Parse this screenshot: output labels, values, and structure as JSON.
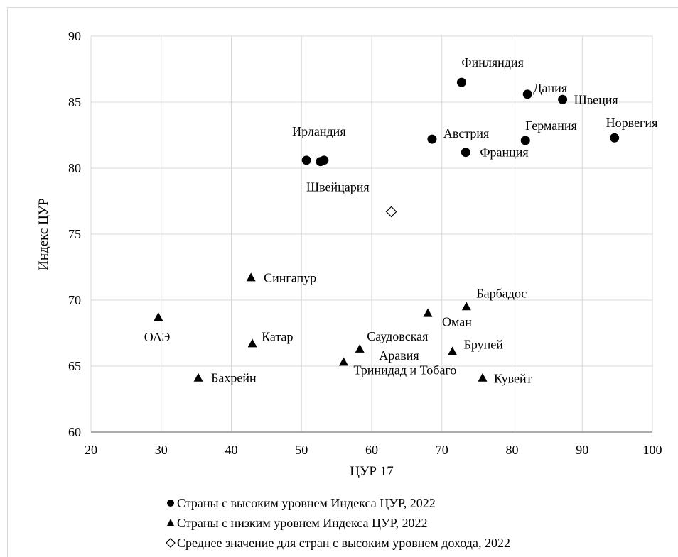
{
  "chart_data": {
    "type": "scatter",
    "xlabel": "ЦУР 17",
    "ylabel": "Индекс ЦУР",
    "xlim": [
      20,
      100
    ],
    "ylim": [
      60,
      90
    ],
    "xticks": [
      20,
      30,
      40,
      50,
      60,
      70,
      80,
      90,
      100
    ],
    "yticks": [
      60,
      65,
      70,
      75,
      80,
      85,
      90
    ],
    "grid": true,
    "legend_position": "bottom",
    "series": [
      {
        "name": "Страны с высоким уровнем Индекса ЦУР, 2022",
        "marker": "circle",
        "color": "#000000",
        "points": [
          {
            "label": "Финляндия",
            "x": 72.8,
            "y": 86.5
          },
          {
            "label": "Дания",
            "x": 82.2,
            "y": 85.6
          },
          {
            "label": "Швеция",
            "x": 87.2,
            "y": 85.2
          },
          {
            "label": "Норвегия",
            "x": 94.6,
            "y": 82.3
          },
          {
            "label": "Австрия",
            "x": 68.6,
            "y": 82.2
          },
          {
            "label": "Германия",
            "x": 81.9,
            "y": 82.1
          },
          {
            "label": "Франция",
            "x": 73.4,
            "y": 81.2
          },
          {
            "label": "Ирландия",
            "x": 50.7,
            "y": 80.6
          },
          {
            "label": "Швейцария",
            "x": 52.7,
            "y": 80.5
          },
          {
            "label": "",
            "x": 53.2,
            "y": 80.6
          }
        ]
      },
      {
        "name": "Страны с низким уровнем Индекса ЦУР, 2022",
        "marker": "triangle",
        "color": "#000000",
        "points": [
          {
            "label": "Сингапур",
            "x": 42.8,
            "y": 71.7
          },
          {
            "label": "ОАЭ",
            "x": 29.6,
            "y": 68.7
          },
          {
            "label": "Катар",
            "x": 43.0,
            "y": 66.7
          },
          {
            "label": "Бахрейн",
            "x": 35.3,
            "y": 64.1
          },
          {
            "label": "Оман",
            "x": 68.0,
            "y": 69.0
          },
          {
            "label": "Барбадос",
            "x": 73.5,
            "y": 69.5
          },
          {
            "label": "Саудовская Аравия",
            "x": 58.3,
            "y": 66.3
          },
          {
            "label": "Бруней",
            "x": 71.5,
            "y": 66.1
          },
          {
            "label": "Тринидад и Тобаго",
            "x": 56.0,
            "y": 65.3
          },
          {
            "label": "Кувейт",
            "x": 75.8,
            "y": 64.1
          }
        ]
      },
      {
        "name": "Среднее значение для стран с высоким уровнем дохода, 2022",
        "marker": "diamond-open",
        "color": "#000000",
        "points": [
          {
            "label": "",
            "x": 62.8,
            "y": 76.7
          }
        ]
      }
    ]
  }
}
